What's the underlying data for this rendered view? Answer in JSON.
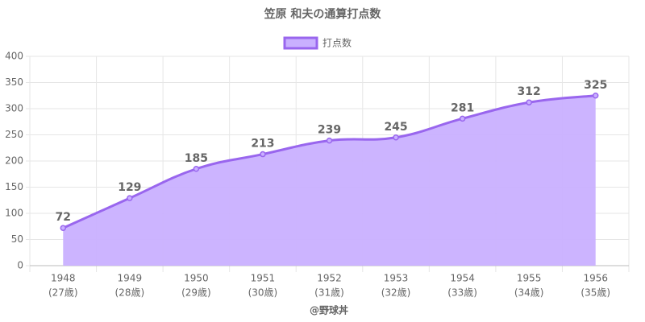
{
  "chart_data": {
    "type": "area",
    "title": "笠原 和夫の通算打点数",
    "categories": [
      [
        "1948",
        "(27歳)"
      ],
      [
        "1949",
        "(28歳)"
      ],
      [
        "1950",
        "(29歳)"
      ],
      [
        "1951",
        "(30歳)"
      ],
      [
        "1952",
        "(31歳)"
      ],
      [
        "1953",
        "(32歳)"
      ],
      [
        "1954",
        "(33歳)"
      ],
      [
        "1955",
        "(34歳)"
      ],
      [
        "1956",
        "(35歳)"
      ]
    ],
    "series": [
      {
        "name": "打点数",
        "color": "#9966ee",
        "fill": "#c9b0ff",
        "values": [
          72,
          129,
          185,
          213,
          239,
          245,
          281,
          312,
          325
        ]
      }
    ],
    "ylim": [
      0,
      400
    ],
    "yticks": [
      0,
      50,
      100,
      150,
      200,
      250,
      300,
      350,
      400
    ],
    "grid": true,
    "legend": "top",
    "credit": "@野球丼"
  }
}
